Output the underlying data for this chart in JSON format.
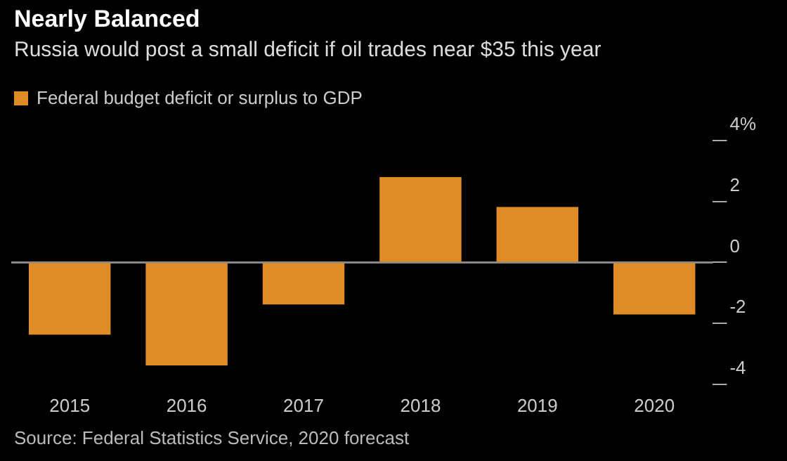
{
  "chart_data": {
    "type": "bar",
    "title": "Nearly Balanced",
    "subtitle": "Russia would post a small deficit if oil trades near $35 this year",
    "categories": [
      "2015",
      "2016",
      "2017",
      "2018",
      "2019",
      "2020"
    ],
    "series": [
      {
        "name": "Federal budget deficit or surplus to GDP",
        "color": "#e08c26",
        "values": [
          -2.37,
          -3.38,
          -1.38,
          2.8,
          1.82,
          -1.71
        ]
      }
    ],
    "ylim": [
      -4,
      4
    ],
    "yticks": [
      {
        "value": 4,
        "label": "4%"
      },
      2,
      0,
      -2,
      -4
    ],
    "grid": false,
    "legend": "top left",
    "ref_lines": [
      {
        "axis": "y",
        "value": 0,
        "color": "#888888"
      }
    ],
    "annotations": [
      "Source: Federal Statistics Service, 2020 forecast"
    ]
  }
}
